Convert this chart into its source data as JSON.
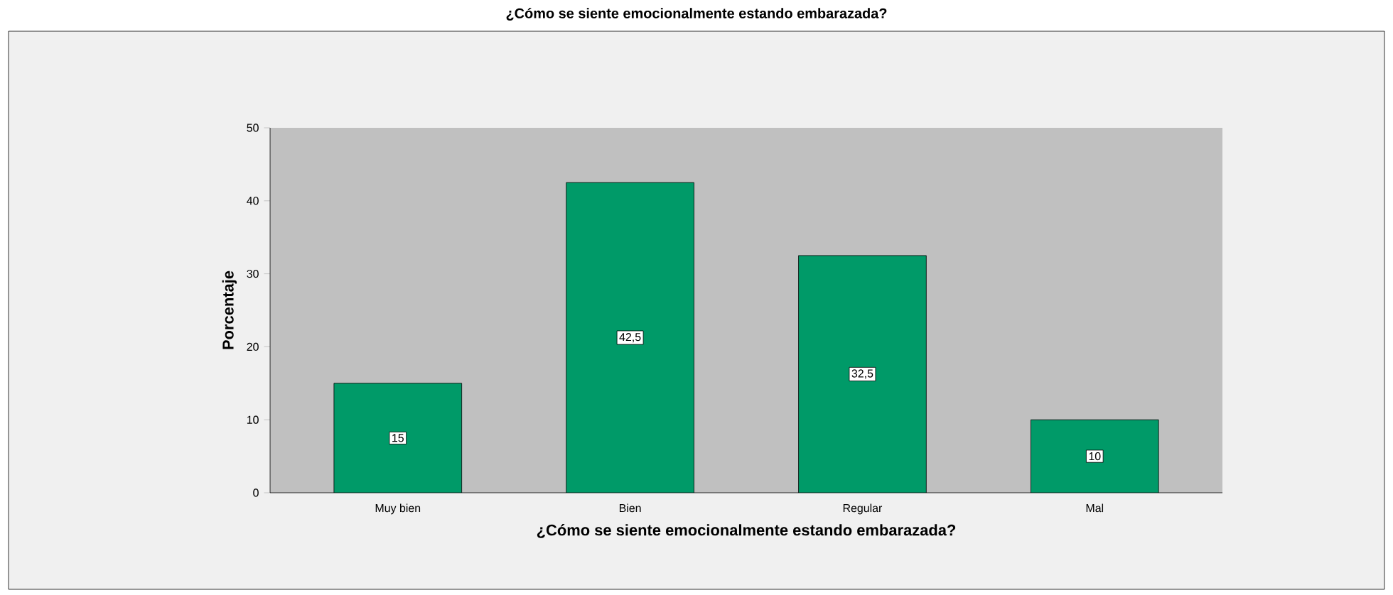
{
  "chart_data": {
    "type": "bar",
    "title": "¿Cómo se siente emocionalmente estando embarazada?",
    "xlabel": "¿Cómo se siente emocionalmente estando embarazada?",
    "ylabel": "Porcentaje",
    "categories": [
      "Muy bien",
      "Bien",
      "Regular",
      "Mal"
    ],
    "values": [
      15,
      42.5,
      32.5,
      10
    ],
    "value_labels": [
      "15",
      "42,5",
      "32,5",
      "10"
    ],
    "color": "#009a68",
    "ylim": [
      0,
      50
    ],
    "yticks": [
      0,
      10,
      20,
      30,
      40,
      50
    ]
  }
}
